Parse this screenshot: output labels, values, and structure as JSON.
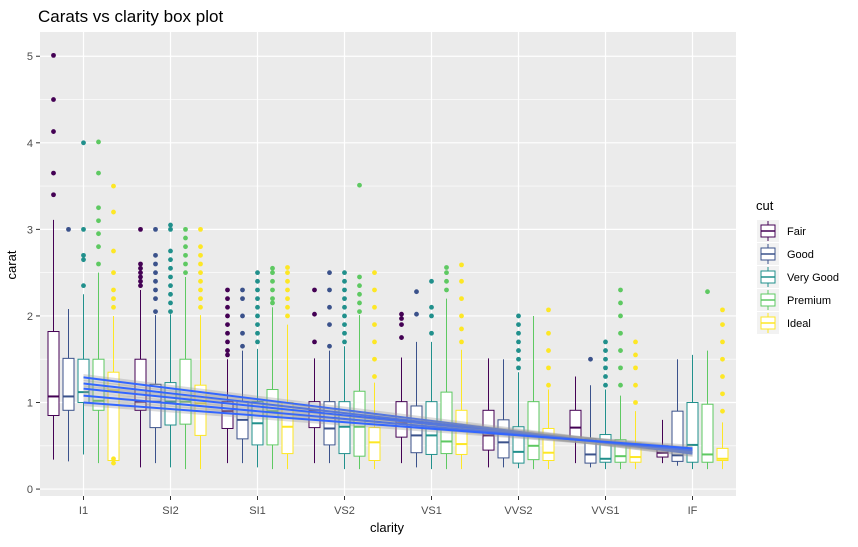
{
  "chart_data": {
    "type": "box",
    "title": "Carats vs clarity box plot",
    "xlabel": "clarity",
    "ylabel": "carat",
    "categories": [
      "I1",
      "SI2",
      "SI1",
      "VS2",
      "VS1",
      "VVS2",
      "VVS1",
      "IF"
    ],
    "yticks": [
      0,
      1,
      2,
      3,
      4,
      5
    ],
    "ylim": [
      -0.08,
      5.28
    ],
    "grid": true,
    "legend": {
      "title": "cut",
      "position": "right"
    },
    "series": [
      {
        "name": "Fair",
        "color": "#440154",
        "boxes": [
          {
            "min": 0.34,
            "q1": 0.85,
            "median": 1.07,
            "q3": 1.82,
            "max": 3.11,
            "outliers": [
              3.4,
              3.65,
              4.13,
              4.5,
              5.01
            ]
          },
          {
            "min": 0.25,
            "q1": 0.91,
            "median": 1.01,
            "q3": 1.5,
            "max": 2.3,
            "outliers": [
              2.35,
              2.4,
              2.45,
              2.5,
              2.55,
              2.6,
              3.0
            ]
          },
          {
            "min": 0.3,
            "q1": 0.7,
            "median": 0.9,
            "q3": 1.01,
            "max": 1.5,
            "outliers": [
              1.55,
              1.6,
              1.7,
              1.8,
              1.9,
              2.0,
              2.1,
              2.2,
              2.3
            ]
          },
          {
            "min": 0.3,
            "q1": 0.71,
            "median": 0.91,
            "q3": 1.01,
            "max": 1.51,
            "outliers": [
              1.7,
              2.02,
              2.3
            ]
          },
          {
            "min": 0.3,
            "q1": 0.6,
            "median": 0.76,
            "q3": 1.01,
            "max": 1.52,
            "outliers": [
              1.75,
              1.9,
              1.97,
              2.02
            ]
          },
          {
            "min": 0.25,
            "q1": 0.45,
            "median": 0.62,
            "q3": 0.91,
            "max": 1.51,
            "outliers": []
          },
          {
            "min": 0.3,
            "q1": 0.57,
            "median": 0.71,
            "q3": 0.91,
            "max": 1.3,
            "outliers": []
          },
          {
            "min": 0.3,
            "q1": 0.37,
            "median": 0.42,
            "q3": 0.5,
            "max": 0.8,
            "outliers": []
          }
        ]
      },
      {
        "name": "Good",
        "color": "#3b528b",
        "boxes": [
          {
            "min": 0.32,
            "q1": 0.91,
            "median": 1.07,
            "q3": 1.51,
            "max": 2.08,
            "outliers": [
              3.0
            ]
          },
          {
            "min": 0.3,
            "q1": 0.71,
            "median": 1.01,
            "q3": 1.21,
            "max": 2.01,
            "outliers": [
              2.05,
              2.2,
              2.3,
              2.4,
              2.5,
              2.6,
              2.7,
              3.0
            ]
          },
          {
            "min": 0.3,
            "q1": 0.58,
            "median": 0.8,
            "q3": 1.01,
            "max": 1.6,
            "outliers": [
              1.65,
              1.8,
              2.0,
              2.2,
              2.3
            ]
          },
          {
            "min": 0.3,
            "q1": 0.51,
            "median": 0.7,
            "q3": 1.01,
            "max": 1.6,
            "outliers": [
              1.65,
              1.9,
              2.1,
              2.3,
              2.5
            ]
          },
          {
            "min": 0.25,
            "q1": 0.42,
            "median": 0.62,
            "q3": 0.96,
            "max": 1.7,
            "outliers": [
              2.02,
              2.28
            ]
          },
          {
            "min": 0.25,
            "q1": 0.36,
            "median": 0.54,
            "q3": 0.8,
            "max": 1.5,
            "outliers": []
          },
          {
            "min": 0.25,
            "q1": 0.3,
            "median": 0.4,
            "q3": 0.58,
            "max": 1.2,
            "outliers": [
              1.5
            ]
          },
          {
            "min": 0.27,
            "q1": 0.32,
            "median": 0.39,
            "q3": 0.9,
            "max": 1.5,
            "outliers": []
          }
        ]
      },
      {
        "name": "Very Good",
        "color": "#21908c",
        "boxes": [
          {
            "min": 0.4,
            "q1": 1.0,
            "median": 1.12,
            "q3": 1.5,
            "max": 2.25,
            "outliers": [
              2.35,
              2.65,
              2.7,
              3.0,
              4.0
            ]
          },
          {
            "min": 0.25,
            "q1": 0.74,
            "median": 1.01,
            "q3": 1.23,
            "max": 2.02,
            "outliers": [
              2.05,
              2.15,
              2.25,
              2.35,
              2.45,
              2.55,
              2.65,
              2.75,
              3.0,
              3.05
            ]
          },
          {
            "min": 0.25,
            "q1": 0.51,
            "median": 0.76,
            "q3": 1.01,
            "max": 1.62,
            "outliers": [
              1.7,
              1.8,
              1.9,
              2.0,
              2.1,
              2.2,
              2.3,
              2.4,
              2.5
            ]
          },
          {
            "min": 0.23,
            "q1": 0.41,
            "median": 0.72,
            "q3": 1.01,
            "max": 1.65,
            "outliers": [
              1.7,
              1.8,
              1.9,
              2.0,
              2.1,
              2.2,
              2.3,
              2.4,
              2.5
            ]
          },
          {
            "min": 0.23,
            "q1": 0.4,
            "median": 0.62,
            "q3": 1.01,
            "max": 1.7,
            "outliers": [
              1.8,
              2.0,
              2.1,
              2.4
            ]
          },
          {
            "min": 0.24,
            "q1": 0.3,
            "median": 0.43,
            "q3": 0.72,
            "max": 1.35,
            "outliers": [
              1.4,
              1.5,
              1.6,
              1.7,
              1.8,
              1.9,
              2.0
            ]
          },
          {
            "min": 0.23,
            "q1": 0.31,
            "median": 0.35,
            "q3": 0.63,
            "max": 1.15,
            "outliers": [
              1.2,
              1.3,
              1.4,
              1.5,
              1.6,
              1.7
            ]
          },
          {
            "min": 0.23,
            "q1": 0.31,
            "median": 0.51,
            "q3": 1.0,
            "max": 1.55,
            "outliers": []
          }
        ]
      },
      {
        "name": "Premium",
        "color": "#5ec962",
        "boxes": [
          {
            "min": 0.3,
            "q1": 0.91,
            "median": 1.02,
            "q3": 1.5,
            "max": 2.5,
            "outliers": [
              2.6,
              2.8,
              2.95,
              3.1,
              3.25,
              3.65,
              4.01
            ]
          },
          {
            "min": 0.23,
            "q1": 0.75,
            "median": 1.01,
            "q3": 1.5,
            "max": 2.45,
            "outliers": [
              2.5,
              2.6,
              2.7,
              2.8,
              2.9,
              3.0
            ]
          },
          {
            "min": 0.23,
            "q1": 0.51,
            "median": 0.9,
            "q3": 1.15,
            "max": 2.1,
            "outliers": [
              2.15,
              2.2,
              2.3,
              2.4,
              2.5,
              2.55
            ]
          },
          {
            "min": 0.23,
            "q1": 0.38,
            "median": 0.72,
            "q3": 1.13,
            "max": 2.01,
            "outliers": [
              2.05,
              2.15,
              2.25,
              2.35,
              2.45,
              3.51
            ]
          },
          {
            "min": 0.23,
            "q1": 0.41,
            "median": 0.55,
            "q3": 1.12,
            "max": 2.2,
            "outliers": [
              2.3,
              2.4,
              2.5,
              2.56
            ]
          },
          {
            "min": 0.23,
            "q1": 0.34,
            "median": 0.5,
            "q3": 1.01,
            "max": 2.0,
            "outliers": []
          },
          {
            "min": 0.23,
            "q1": 0.31,
            "median": 0.38,
            "q3": 0.57,
            "max": 1.08,
            "outliers": [
              1.2,
              1.4,
              1.6,
              1.8,
              2.0,
              2.15,
              2.3
            ]
          },
          {
            "min": 0.23,
            "q1": 0.31,
            "median": 0.4,
            "q3": 0.98,
            "max": 1.6,
            "outliers": [
              2.28
            ]
          }
        ]
      },
      {
        "name": "Ideal",
        "color": "#fde725",
        "boxes": [
          {
            "min": 0.3,
            "q1": 0.33,
            "median": 1.14,
            "q3": 1.35,
            "max": 2.0,
            "outliers": [
              0.3,
              0.35,
              2.1,
              2.2,
              2.3,
              2.5,
              2.75,
              3.2,
              3.5
            ]
          },
          {
            "min": 0.23,
            "q1": 0.62,
            "median": 0.99,
            "q3": 1.2,
            "max": 2.01,
            "outliers": [
              2.1,
              2.2,
              2.3,
              2.4,
              2.5,
              2.6,
              2.7,
              2.8,
              3.0
            ]
          },
          {
            "min": 0.23,
            "q1": 0.41,
            "median": 0.72,
            "q3": 1.0,
            "max": 1.9,
            "outliers": [
              2.0,
              2.1,
              2.2,
              2.3,
              2.4,
              2.5,
              2.56
            ]
          },
          {
            "min": 0.23,
            "q1": 0.33,
            "median": 0.54,
            "q3": 0.71,
            "max": 1.23,
            "outliers": [
              1.3,
              1.5,
              1.7,
              1.9,
              2.1,
              2.3,
              2.5
            ]
          },
          {
            "min": 0.23,
            "q1": 0.4,
            "median": 0.52,
            "q3": 0.91,
            "max": 1.61,
            "outliers": [
              1.7,
              1.85,
              2.0,
              2.2,
              2.4,
              2.59
            ]
          },
          {
            "min": 0.23,
            "q1": 0.33,
            "median": 0.42,
            "q3": 0.7,
            "max": 1.15,
            "outliers": [
              1.2,
              1.4,
              1.6,
              1.8,
              2.07
            ]
          },
          {
            "min": 0.23,
            "q1": 0.31,
            "median": 0.37,
            "q3": 0.53,
            "max": 0.9,
            "outliers": [
              1.0,
              1.2,
              1.4,
              1.55,
              1.7
            ]
          },
          {
            "min": 0.23,
            "q1": 0.33,
            "median": 0.35,
            "q3": 0.47,
            "max": 0.77,
            "outliers": [
              0.9,
              1.1,
              1.3,
              1.5,
              1.7,
              1.9,
              2.07
            ]
          }
        ]
      }
    ],
    "trend_lines": {
      "color": "#3366ff",
      "lines": [
        {
          "name": "Fair",
          "start": 1.29,
          "end": 0.41
        },
        {
          "name": "Good",
          "start": 1.22,
          "end": 0.42
        },
        {
          "name": "Very Good",
          "start": 1.16,
          "end": 0.44
        },
        {
          "name": "Premium",
          "start": 1.08,
          "end": 0.45
        },
        {
          "name": "Ideal",
          "start": 1.0,
          "end": 0.47
        }
      ]
    }
  }
}
